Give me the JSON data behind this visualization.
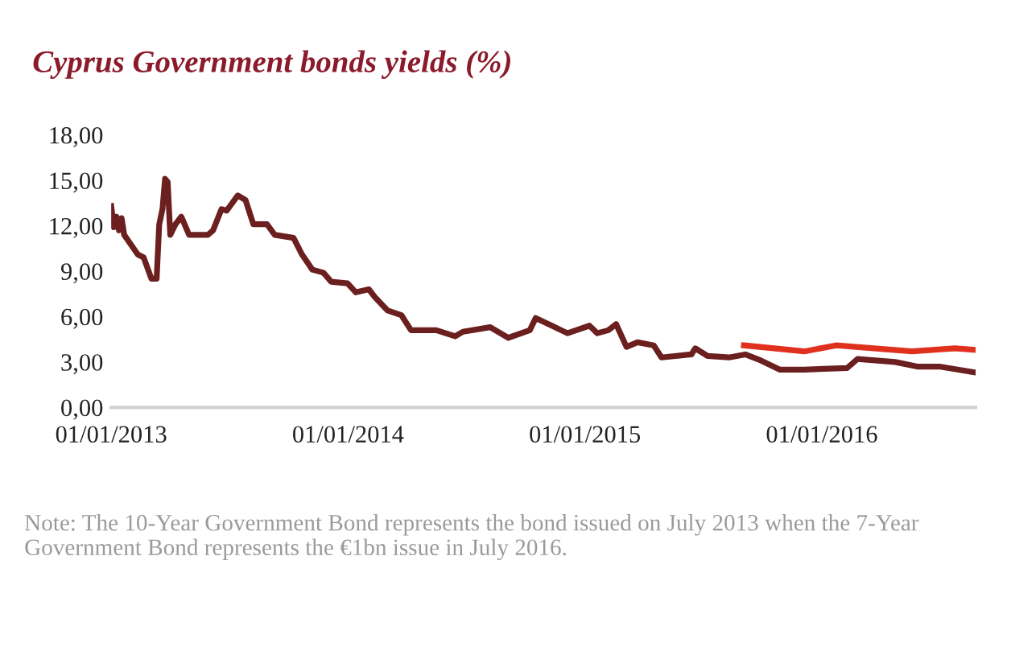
{
  "chart_data": {
    "type": "line",
    "title": "Cyprus Government bonds yields (%)",
    "annotations": [
      "Note: The 10-Year Government Bond represents the bond issued on July 2013 when the 7-Year Government Bond represents the €1bn issue in July 2016."
    ],
    "series": [
      {
        "color": "#6b1f1f",
        "x": [
          "2013-01-01",
          "2013-01-05",
          "2013-01-09",
          "2013-01-13",
          "2013-01-17",
          "2013-01-21",
          "2013-02-11",
          "2013-02-20",
          "2013-03-04",
          "2013-03-12",
          "2013-03-16",
          "2013-03-21",
          "2013-03-25",
          "2013-03-29",
          "2013-04-02",
          "2013-04-10",
          "2013-04-19",
          "2013-05-01",
          "2013-05-30",
          "2013-06-07",
          "2013-06-20",
          "2013-06-28",
          "2013-07-15",
          "2013-07-27",
          "2013-08-08",
          "2013-08-29",
          "2013-09-10",
          "2013-10-09",
          "2013-10-22",
          "2013-11-07",
          "2013-11-24",
          "2013-12-06",
          "2013-12-31",
          "2014-01-13",
          "2014-02-02",
          "2014-02-11",
          "2014-03-03",
          "2014-03-24",
          "2014-04-08",
          "2014-05-17",
          "2014-06-15",
          "2014-06-27",
          "2014-08-08",
          "2014-09-05",
          "2014-10-08",
          "2014-10-17",
          "2014-11-11",
          "2014-12-05",
          "2015-01-08",
          "2015-01-20",
          "2015-02-06",
          "2015-02-18",
          "2015-03-06",
          "2015-03-23",
          "2015-04-17",
          "2015-04-29",
          "2015-06-14",
          "2015-06-20",
          "2015-07-09",
          "2015-08-11",
          "2015-09-05",
          "2015-09-29",
          "2015-10-28",
          "2015-12-05",
          "2016-02-09",
          "2016-02-25",
          "2016-04-23",
          "2016-05-27",
          "2016-06-30",
          "2016-08-25"
        ],
        "values": [
          13.3,
          11.9,
          12.6,
          11.7,
          12.5,
          11.4,
          10.1,
          9.9,
          8.5,
          8.5,
          12.1,
          13.1,
          15.1,
          14.9,
          11.4,
          12.1,
          12.6,
          11.4,
          11.4,
          11.7,
          13.1,
          13.0,
          14.0,
          13.7,
          12.1,
          12.1,
          11.4,
          11.2,
          10.1,
          9.1,
          8.9,
          8.3,
          8.2,
          7.6,
          7.8,
          7.3,
          6.4,
          6.1,
          5.1,
          5.1,
          4.7,
          5.0,
          5.3,
          4.6,
          5.1,
          5.9,
          5.4,
          4.9,
          5.4,
          4.9,
          5.1,
          5.5,
          4.0,
          4.3,
          4.1,
          3.3,
          3.5,
          3.9,
          3.4,
          3.3,
          3.5,
          3.1,
          2.5,
          2.5,
          2.6,
          3.2,
          3.0,
          2.7,
          2.7,
          2.3
        ]
      },
      {
        "color": "#e0301e",
        "x": [
          "2015-09-03",
          "2015-12-05",
          "2016-01-23",
          "2016-03-21",
          "2016-05-19",
          "2016-07-24",
          "2016-08-25"
        ],
        "values": [
          4.1,
          3.7,
          4.1,
          3.9,
          3.7,
          3.9,
          3.8
        ]
      }
    ],
    "xlim": [
      "2013-01-01",
      "2016-08-25"
    ],
    "xticks": [
      {
        "value": "2013-01-01",
        "label": "01/01/2013"
      },
      {
        "value": "2014-01-01",
        "label": "01/01/2014"
      },
      {
        "value": "2015-01-01",
        "label": "01/01/2015"
      },
      {
        "value": "2016-01-01",
        "label": "01/01/2016"
      }
    ],
    "ylim": [
      0,
      18
    ],
    "yticks": [
      {
        "value": 0,
        "label": "0,00"
      },
      {
        "value": 3,
        "label": "3,00"
      },
      {
        "value": 6,
        "label": "6,00"
      },
      {
        "value": 9,
        "label": "9,00"
      },
      {
        "value": 12,
        "label": "12,00"
      },
      {
        "value": 15,
        "label": "15,00"
      },
      {
        "value": 18,
        "label": "18,00"
      }
    ],
    "grid": false,
    "legend": false
  }
}
